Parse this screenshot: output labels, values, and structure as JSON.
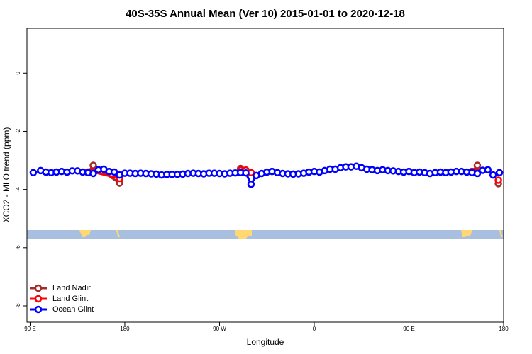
{
  "chart_data": {
    "type": "line",
    "title": "40S-35S Annual Mean (Ver 10)   2015-01-01 to 2020-12-18",
    "x_label": "Longitude",
    "y_label": "XCO2 - MLO trend (ppm)",
    "xlim": [
      87,
      540
    ],
    "ylim": [
      -8.56,
      1.54
    ],
    "xticks": [
      {
        "value": 90,
        "label": "90 E"
      },
      180,
      {
        "value": 270,
        "label": "90 W"
      },
      {
        "value": 360,
        "label": "0"
      },
      {
        "value": 450,
        "label": "90 E"
      },
      {
        "value": 540,
        "label": "180"
      }
    ],
    "yticks": [
      0,
      -2,
      -4,
      -6,
      -8
    ],
    "legend": "bottom-left",
    "series": [
      {
        "name": "Land Nadir",
        "color": "#a52a2a",
        "x": [
          145,
          150,
          175,
          null,
          290,
          295,
          null,
          510,
          515,
          null,
          535
        ],
        "values": [
          -3.4,
          -3.17,
          -3.78,
          null,
          -3.28,
          -3.35,
          null,
          -3.38,
          -3.17,
          null,
          -3.8
        ]
      },
      {
        "name": "Land Glint",
        "color": "#ff0000",
        "x": [
          145,
          150,
          175,
          null,
          290,
          295,
          300,
          null,
          510,
          515,
          null,
          535
        ],
        "values": [
          -3.42,
          -3.4,
          -3.62,
          null,
          -3.33,
          -3.33,
          -3.42,
          null,
          -3.38,
          -3.4,
          null,
          -3.68
        ]
      },
      {
        "name": "Ocean Glint",
        "color": "#0000ff",
        "x": [
          93,
          100,
          105,
          110,
          115,
          120,
          125,
          130,
          135,
          140,
          145,
          150,
          155,
          160,
          165,
          170,
          175,
          180,
          185,
          190,
          195,
          200,
          205,
          210,
          215,
          220,
          225,
          230,
          235,
          240,
          245,
          250,
          255,
          260,
          265,
          270,
          275,
          280,
          285,
          290,
          295,
          300,
          305,
          310,
          315,
          320,
          325,
          330,
          335,
          340,
          345,
          350,
          355,
          360,
          365,
          370,
          375,
          380,
          385,
          390,
          395,
          400,
          405,
          410,
          415,
          420,
          425,
          430,
          435,
          440,
          445,
          450,
          455,
          460,
          465,
          470,
          475,
          480,
          485,
          490,
          495,
          500,
          505,
          510,
          515,
          520,
          525,
          530,
          536
        ],
        "values": [
          -3.42,
          -3.35,
          -3.4,
          -3.42,
          -3.4,
          -3.38,
          -3.4,
          -3.36,
          -3.36,
          -3.4,
          -3.42,
          -3.45,
          -3.32,
          -3.3,
          -3.38,
          -3.4,
          -3.5,
          -3.44,
          -3.44,
          -3.45,
          -3.44,
          -3.45,
          -3.46,
          -3.47,
          -3.5,
          -3.48,
          -3.48,
          -3.48,
          -3.47,
          -3.45,
          -3.44,
          -3.45,
          -3.46,
          -3.44,
          -3.44,
          -3.45,
          -3.46,
          -3.44,
          -3.43,
          -3.42,
          -3.43,
          -3.82,
          -3.52,
          -3.45,
          -3.4,
          -3.38,
          -3.42,
          -3.45,
          -3.46,
          -3.47,
          -3.46,
          -3.44,
          -3.4,
          -3.38,
          -3.4,
          -3.35,
          -3.3,
          -3.3,
          -3.25,
          -3.22,
          -3.22,
          -3.2,
          -3.25,
          -3.3,
          -3.32,
          -3.35,
          -3.32,
          -3.35,
          -3.36,
          -3.38,
          -3.4,
          -3.38,
          -3.42,
          -3.4,
          -3.42,
          -3.45,
          -3.42,
          -3.4,
          -3.42,
          -3.4,
          -3.38,
          -3.38,
          -3.4,
          -3.42,
          -3.45,
          -3.34,
          -3.32,
          -3.5,
          -3.42
        ]
      }
    ]
  }
}
